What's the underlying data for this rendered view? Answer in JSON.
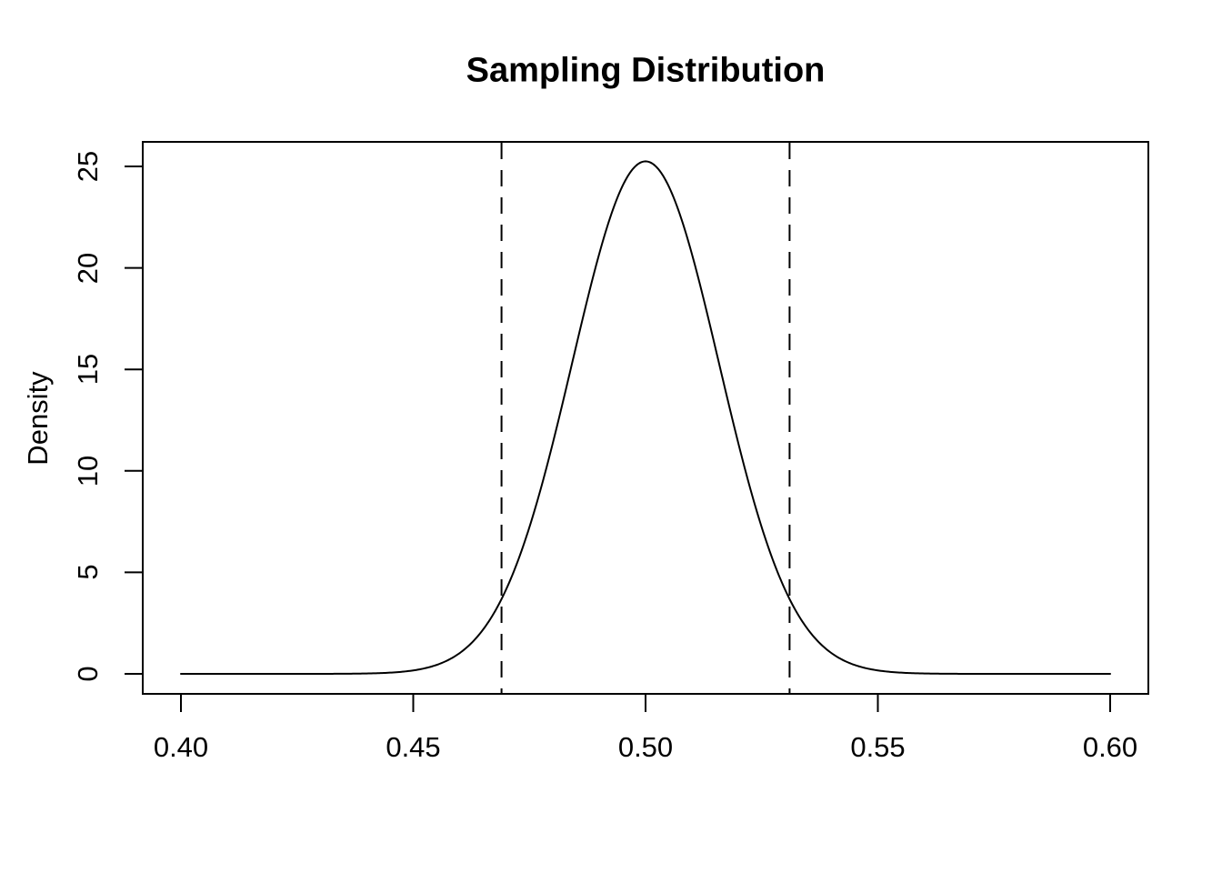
{
  "figure": {
    "background": "#ffffff",
    "foreground": "#000000"
  },
  "chart_data": {
    "type": "line",
    "title": "Sampling Distribution",
    "xlabel": "",
    "ylabel": "Density",
    "xlim": [
      0.4,
      0.6
    ],
    "ylim": [
      0,
      25.2
    ],
    "x_ticks": [
      0.4,
      0.45,
      0.5,
      0.55,
      0.6
    ],
    "x_tick_labels": [
      "0.40",
      "0.45",
      "0.50",
      "0.55",
      "0.60"
    ],
    "y_ticks": [
      0,
      5,
      10,
      15,
      20,
      25
    ],
    "y_tick_labels": [
      "0",
      "5",
      "10",
      "15",
      "20",
      "25"
    ],
    "grid": false,
    "legend": "none",
    "line_color": "#000000",
    "background": "#ffffff",
    "curve": {
      "distribution": "normal-density",
      "mean": 0.5,
      "sd": 0.0158,
      "peak_density": 25.2,
      "x_start": 0.4,
      "x_end": 0.6
    },
    "points": [
      {
        "x": 0.4,
        "y": 0.0
      },
      {
        "x": 0.41,
        "y": 0.0
      },
      {
        "x": 0.42,
        "y": 0.0
      },
      {
        "x": 0.43,
        "y": 0.0
      },
      {
        "x": 0.44,
        "y": 0.02
      },
      {
        "x": 0.45,
        "y": 0.17
      },
      {
        "x": 0.46,
        "y": 1.02
      },
      {
        "x": 0.47,
        "y": 4.16
      },
      {
        "x": 0.48,
        "y": 11.32
      },
      {
        "x": 0.49,
        "y": 20.65
      },
      {
        "x": 0.5,
        "y": 25.23
      },
      {
        "x": 0.51,
        "y": 20.65
      },
      {
        "x": 0.52,
        "y": 11.32
      },
      {
        "x": 0.53,
        "y": 4.16
      },
      {
        "x": 0.54,
        "y": 1.02
      },
      {
        "x": 0.55,
        "y": 0.17
      },
      {
        "x": 0.56,
        "y": 0.02
      },
      {
        "x": 0.57,
        "y": 0.0
      },
      {
        "x": 0.58,
        "y": 0.0
      },
      {
        "x": 0.59,
        "y": 0.0
      },
      {
        "x": 0.6,
        "y": 0.0
      }
    ],
    "vlines": [
      {
        "x": 0.469,
        "style": "dashed",
        "color": "#000000"
      },
      {
        "x": 0.531,
        "style": "dashed",
        "color": "#000000"
      }
    ]
  }
}
